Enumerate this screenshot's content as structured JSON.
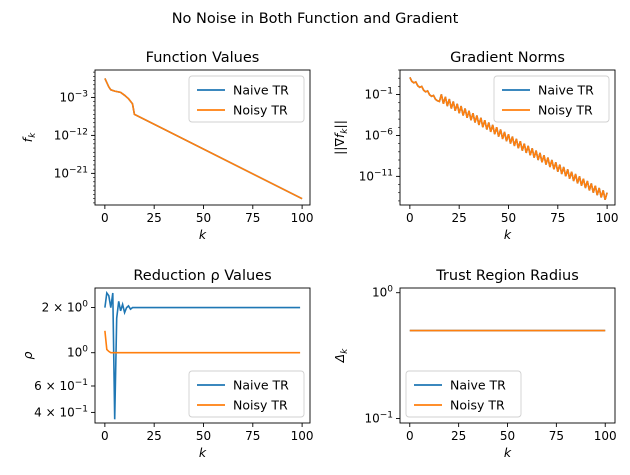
{
  "suptitle": "No Noise in Both Function and Gradient",
  "colors": {
    "naive": "#1f77b4",
    "noisy": "#ff7f0e"
  },
  "chart_data": [
    {
      "type": "line",
      "title": "Function Values",
      "xlabel": "k",
      "ylabel": "f_k",
      "yscale": "log",
      "xlim": [
        -5,
        104
      ],
      "ylim_log10": [
        -28.5,
        3.5
      ],
      "x_ticks": [
        0,
        25,
        50,
        75,
        100
      ],
      "y_ticks": [
        {
          "value": -3,
          "label": "10^-3"
        },
        {
          "value": -12,
          "label": "10^-12"
        },
        {
          "value": -21,
          "label": "10^-21"
        }
      ],
      "legend": "upper right",
      "series": [
        {
          "name": "Naive TR",
          "x": [
            0,
            2,
            3,
            5,
            8,
            10,
            12,
            14,
            15,
            100
          ],
          "log10_y": [
            1.5,
            -0.5,
            -1.2,
            -1.5,
            -1.8,
            -2.5,
            -3.3,
            -4.5,
            -7.0,
            -27.0
          ]
        },
        {
          "name": "Noisy TR",
          "x": [
            0,
            2,
            3,
            5,
            8,
            10,
            12,
            14,
            15,
            100
          ],
          "log10_y": [
            1.5,
            -0.5,
            -1.2,
            -1.5,
            -1.8,
            -2.5,
            -3.3,
            -4.5,
            -7.0,
            -27.0
          ]
        }
      ]
    },
    {
      "type": "line",
      "title": "Gradient Norms",
      "xlabel": "k",
      "ylabel": "||∇f_k||",
      "yscale": "log",
      "xlim": [
        -5,
        104
      ],
      "ylim_log10": [
        -14.5,
        2.0
      ],
      "x_ticks": [
        0,
        25,
        50,
        75,
        100
      ],
      "y_ticks": [
        {
          "value": -1,
          "label": "10^-1"
        },
        {
          "value": -6,
          "label": "10^-6"
        },
        {
          "value": -11,
          "label": "10^-11"
        }
      ],
      "legend": "upper right",
      "series": [
        {
          "name": "Naive TR",
          "x": [
            0,
            100
          ],
          "log10_y_start": 0.8,
          "log10_y_end": -13.5,
          "oscillation": 0.5
        },
        {
          "name": "Noisy TR",
          "x": [
            0,
            100
          ],
          "log10_y_start": 0.8,
          "log10_y_end": -13.5,
          "oscillation": 0.5
        }
      ]
    },
    {
      "type": "line",
      "title": "Reduction ρ Values",
      "xlabel": "k",
      "ylabel": "ρ",
      "yscale": "log",
      "xlim": [
        -5,
        104
      ],
      "ylim": [
        0.34,
        2.7
      ],
      "x_ticks": [
        0,
        25,
        50,
        75,
        100
      ],
      "y_ticks": [
        {
          "value": 2.0,
          "label": "2 × 10^0"
        },
        {
          "value": 1.0,
          "label": "10^0"
        },
        {
          "value": 0.6,
          "label": "6 × 10^-1"
        },
        {
          "value": 0.4,
          "label": "4 × 10^-1"
        }
      ],
      "legend": "lower right",
      "series": [
        {
          "name": "Naive TR",
          "x": [
            0,
            1,
            2,
            3,
            4,
            5,
            6,
            7,
            8,
            9,
            10,
            11,
            12,
            13,
            14,
            15,
            99
          ],
          "y": [
            2.0,
            2.5,
            2.4,
            2.0,
            2.5,
            0.36,
            1.7,
            2.2,
            1.9,
            2.1,
            1.85,
            2.0,
            2.05,
            1.95,
            2.0,
            2.0,
            2.0
          ]
        },
        {
          "name": "Noisy TR",
          "x": [
            0,
            1,
            2,
            3,
            4,
            5,
            99
          ],
          "y": [
            1.4,
            1.05,
            1.02,
            1.0,
            1.0,
            1.0,
            1.0
          ]
        }
      ]
    },
    {
      "type": "line",
      "title": "Trust Region Radius",
      "xlabel": "k",
      "ylabel": "Δ_k",
      "yscale": "log",
      "xlim": [
        -5,
        105
      ],
      "ylim": [
        0.092,
        1.09
      ],
      "x_ticks": [
        0,
        25,
        50,
        75,
        100
      ],
      "y_ticks": [
        {
          "value": 1.0,
          "label": "10^0"
        },
        {
          "value": 0.1,
          "label": "10^-1"
        }
      ],
      "legend": "lower left",
      "series": [
        {
          "name": "Naive TR",
          "x": [
            0,
            100
          ],
          "y": [
            0.5,
            0.5
          ]
        },
        {
          "name": "Noisy TR",
          "x": [
            0,
            100
          ],
          "y": [
            0.5,
            0.5
          ]
        }
      ]
    }
  ]
}
